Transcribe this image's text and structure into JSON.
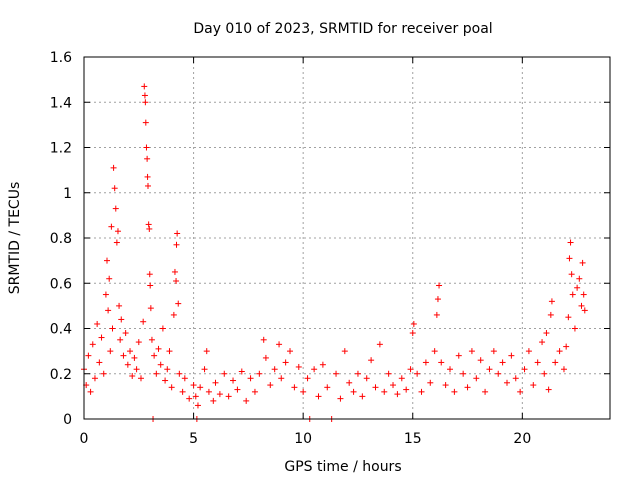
{
  "chart_data": {
    "type": "scatter",
    "title": "Day 010 of 2023, SRMTID for receiver poal",
    "xlabel": "GPS time / hours",
    "ylabel": "SRMTID / TECUs",
    "xlim": [
      0,
      24
    ],
    "ylim": [
      0,
      1.6
    ],
    "grid": true,
    "marker": "+",
    "color": "#ff0000",
    "x_ticks": [
      {
        "value": 0,
        "label": "0"
      },
      {
        "value": 5,
        "label": "5"
      },
      {
        "value": 10,
        "label": "10"
      },
      {
        "value": 15,
        "label": "15"
      },
      {
        "value": 20,
        "label": "20"
      }
    ],
    "y_ticks": [
      {
        "value": 0,
        "label": "0"
      },
      {
        "value": 0.2,
        "label": "0.2"
      },
      {
        "value": 0.4,
        "label": "0.4"
      },
      {
        "value": 0.6,
        "label": "0.6"
      },
      {
        "value": 0.8,
        "label": "0.8"
      },
      {
        "value": 1.0,
        "label": "1"
      },
      {
        "value": 1.2,
        "label": "1.2"
      },
      {
        "value": 1.4,
        "label": "1.4"
      },
      {
        "value": 1.6,
        "label": "1.6"
      }
    ],
    "series": [
      {
        "name": "SRMTID",
        "points": [
          [
            0.0,
            0.22
          ],
          [
            0.1,
            0.15
          ],
          [
            0.2,
            0.28
          ],
          [
            0.3,
            0.12
          ],
          [
            0.4,
            0.33
          ],
          [
            0.5,
            0.18
          ],
          [
            0.6,
            0.42
          ],
          [
            0.7,
            0.25
          ],
          [
            0.8,
            0.36
          ],
          [
            0.9,
            0.2
          ],
          [
            1.0,
            0.55
          ],
          [
            1.05,
            0.7
          ],
          [
            1.1,
            0.48
          ],
          [
            1.15,
            0.62
          ],
          [
            1.2,
            0.3
          ],
          [
            1.25,
            0.85
          ],
          [
            1.3,
            0.4
          ],
          [
            1.35,
            1.11
          ],
          [
            1.4,
            1.02
          ],
          [
            1.45,
            0.93
          ],
          [
            1.5,
            0.78
          ],
          [
            1.55,
            0.83
          ],
          [
            1.6,
            0.5
          ],
          [
            1.65,
            0.35
          ],
          [
            1.7,
            0.44
          ],
          [
            1.8,
            0.28
          ],
          [
            1.9,
            0.38
          ],
          [
            2.0,
            0.24
          ],
          [
            2.1,
            0.3
          ],
          [
            2.2,
            0.19
          ],
          [
            2.3,
            0.27
          ],
          [
            2.4,
            0.22
          ],
          [
            2.5,
            0.34
          ],
          [
            2.6,
            0.18
          ],
          [
            2.7,
            0.43
          ],
          [
            2.75,
            1.47
          ],
          [
            2.78,
            1.43
          ],
          [
            2.8,
            1.4
          ],
          [
            2.82,
            1.31
          ],
          [
            2.85,
            1.2
          ],
          [
            2.88,
            1.15
          ],
          [
            2.9,
            1.07
          ],
          [
            2.92,
            1.03
          ],
          [
            2.95,
            0.86
          ],
          [
            2.98,
            0.84
          ],
          [
            3.0,
            0.64
          ],
          [
            3.02,
            0.59
          ],
          [
            3.05,
            0.49
          ],
          [
            3.1,
            0.35
          ],
          [
            3.15,
            0.0
          ],
          [
            3.2,
            0.28
          ],
          [
            3.3,
            0.2
          ],
          [
            3.4,
            0.31
          ],
          [
            3.5,
            0.24
          ],
          [
            3.6,
            0.4
          ],
          [
            3.7,
            0.17
          ],
          [
            3.8,
            0.22
          ],
          [
            3.9,
            0.3
          ],
          [
            4.0,
            0.14
          ],
          [
            4.1,
            0.46
          ],
          [
            4.15,
            0.65
          ],
          [
            4.2,
            0.61
          ],
          [
            4.22,
            0.77
          ],
          [
            4.25,
            0.82
          ],
          [
            4.3,
            0.51
          ],
          [
            4.35,
            0.2
          ],
          [
            4.5,
            0.12
          ],
          [
            4.6,
            0.18
          ],
          [
            4.8,
            0.09
          ],
          [
            5.0,
            0.15
          ],
          [
            5.1,
            0.1
          ],
          [
            5.15,
            0.0
          ],
          [
            5.2,
            0.06
          ],
          [
            5.3,
            0.14
          ],
          [
            5.5,
            0.22
          ],
          [
            5.6,
            0.3
          ],
          [
            5.7,
            0.12
          ],
          [
            5.9,
            0.08
          ],
          [
            6.0,
            0.16
          ],
          [
            6.2,
            0.11
          ],
          [
            6.4,
            0.2
          ],
          [
            6.6,
            0.1
          ],
          [
            6.8,
            0.17
          ],
          [
            7.0,
            0.13
          ],
          [
            7.2,
            0.21
          ],
          [
            7.4,
            0.08
          ],
          [
            7.6,
            0.18
          ],
          [
            7.8,
            0.12
          ],
          [
            8.0,
            0.2
          ],
          [
            8.2,
            0.35
          ],
          [
            8.3,
            0.27
          ],
          [
            8.5,
            0.15
          ],
          [
            8.7,
            0.22
          ],
          [
            8.9,
            0.33
          ],
          [
            9.0,
            0.18
          ],
          [
            9.2,
            0.25
          ],
          [
            9.4,
            0.3
          ],
          [
            9.6,
            0.14
          ],
          [
            9.8,
            0.23
          ],
          [
            10.0,
            0.12
          ],
          [
            10.2,
            0.18
          ],
          [
            10.3,
            0.0
          ],
          [
            10.5,
            0.22
          ],
          [
            10.7,
            0.1
          ],
          [
            10.9,
            0.24
          ],
          [
            11.1,
            0.14
          ],
          [
            11.3,
            0.0
          ],
          [
            11.5,
            0.2
          ],
          [
            11.7,
            0.09
          ],
          [
            11.9,
            0.3
          ],
          [
            12.1,
            0.16
          ],
          [
            12.3,
            0.12
          ],
          [
            12.5,
            0.2
          ],
          [
            12.7,
            0.1
          ],
          [
            12.9,
            0.18
          ],
          [
            13.1,
            0.26
          ],
          [
            13.3,
            0.14
          ],
          [
            13.5,
            0.33
          ],
          [
            13.7,
            0.12
          ],
          [
            13.9,
            0.2
          ],
          [
            14.1,
            0.15
          ],
          [
            14.3,
            0.11
          ],
          [
            14.5,
            0.18
          ],
          [
            14.7,
            0.13
          ],
          [
            14.9,
            0.22
          ],
          [
            15.0,
            0.38
          ],
          [
            15.05,
            0.42
          ],
          [
            15.2,
            0.2
          ],
          [
            15.4,
            0.12
          ],
          [
            15.6,
            0.25
          ],
          [
            15.8,
            0.16
          ],
          [
            16.0,
            0.3
          ],
          [
            16.1,
            0.46
          ],
          [
            16.15,
            0.53
          ],
          [
            16.2,
            0.59
          ],
          [
            16.3,
            0.25
          ],
          [
            16.5,
            0.15
          ],
          [
            16.7,
            0.22
          ],
          [
            16.9,
            0.12
          ],
          [
            17.1,
            0.28
          ],
          [
            17.3,
            0.2
          ],
          [
            17.5,
            0.14
          ],
          [
            17.7,
            0.3
          ],
          [
            17.9,
            0.18
          ],
          [
            18.1,
            0.26
          ],
          [
            18.3,
            0.12
          ],
          [
            18.5,
            0.22
          ],
          [
            18.7,
            0.3
          ],
          [
            18.9,
            0.2
          ],
          [
            19.1,
            0.25
          ],
          [
            19.3,
            0.16
          ],
          [
            19.5,
            0.28
          ],
          [
            19.7,
            0.18
          ],
          [
            19.9,
            0.12
          ],
          [
            20.1,
            0.22
          ],
          [
            20.3,
            0.3
          ],
          [
            20.5,
            0.15
          ],
          [
            20.7,
            0.25
          ],
          [
            20.9,
            0.34
          ],
          [
            21.0,
            0.2
          ],
          [
            21.1,
            0.38
          ],
          [
            21.2,
            0.13
          ],
          [
            21.3,
            0.46
          ],
          [
            21.35,
            0.52
          ],
          [
            21.5,
            0.25
          ],
          [
            21.7,
            0.3
          ],
          [
            21.9,
            0.22
          ],
          [
            22.0,
            0.32
          ],
          [
            22.1,
            0.45
          ],
          [
            22.15,
            0.71
          ],
          [
            22.2,
            0.78
          ],
          [
            22.25,
            0.64
          ],
          [
            22.3,
            0.55
          ],
          [
            22.4,
            0.4
          ],
          [
            22.5,
            0.58
          ],
          [
            22.6,
            0.62
          ],
          [
            22.7,
            0.5
          ],
          [
            22.75,
            0.69
          ],
          [
            22.8,
            0.55
          ],
          [
            22.85,
            0.48
          ]
        ]
      }
    ]
  }
}
